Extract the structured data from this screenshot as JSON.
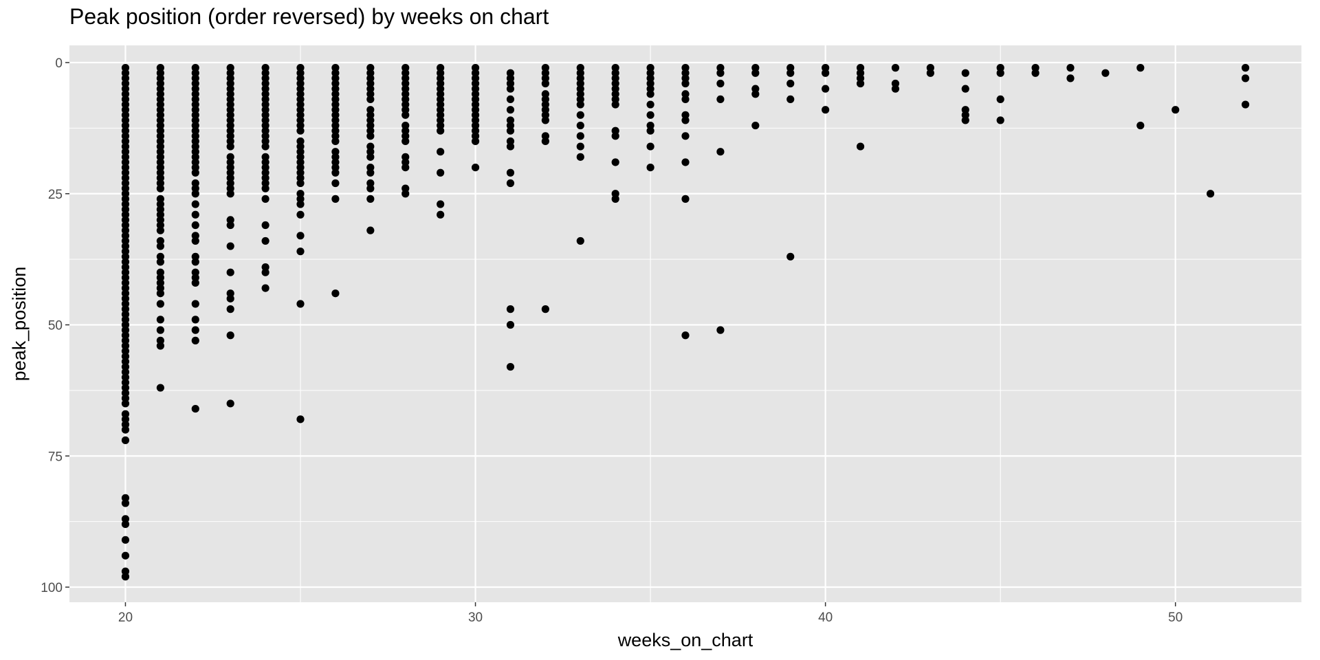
{
  "chart_data": {
    "type": "scatter",
    "title": "Peak position (order reversed) by weeks on chart",
    "xlabel": "weeks_on_chart",
    "ylabel": "peak_position",
    "xlim": [
      18.4,
      53.6
    ],
    "ylim": [
      0,
      101
    ],
    "y_reversed": true,
    "x_ticks": [
      20,
      30,
      40,
      50
    ],
    "y_ticks": [
      0,
      25,
      50,
      75,
      100
    ],
    "grid": true,
    "legend": "none",
    "colors": {
      "panel": "#e5e5e5",
      "grid": "#ffffff",
      "point": "#000000",
      "tick_text": "#4d4d4d"
    },
    "points_by_week": [
      {
        "x": 20,
        "y": [
          1,
          2,
          3,
          4,
          5,
          6,
          7,
          8,
          9,
          10,
          11,
          12,
          13,
          14,
          15,
          16,
          17,
          18,
          19,
          20,
          21,
          22,
          23,
          24,
          25,
          26,
          27,
          28,
          29,
          30,
          31,
          32,
          33,
          34,
          35,
          36,
          37,
          38,
          39,
          40,
          41,
          42,
          43,
          44,
          45,
          46,
          47,
          48,
          49,
          50,
          51,
          52,
          53,
          54,
          55,
          56,
          57,
          58,
          59,
          60,
          61,
          62,
          63,
          64,
          65,
          67,
          68,
          69,
          70,
          72,
          83,
          84,
          87,
          88,
          91,
          94,
          97,
          98
        ]
      },
      {
        "x": 21,
        "y": [
          1,
          2,
          3,
          4,
          5,
          6,
          7,
          8,
          9,
          10,
          11,
          12,
          13,
          14,
          15,
          16,
          17,
          18,
          19,
          20,
          21,
          22,
          23,
          24,
          26,
          27,
          28,
          29,
          30,
          31,
          32,
          34,
          35,
          37,
          38,
          40,
          41,
          42,
          43,
          44,
          46,
          49,
          51,
          53,
          54,
          62
        ]
      },
      {
        "x": 22,
        "y": [
          1,
          2,
          3,
          4,
          5,
          6,
          7,
          8,
          9,
          10,
          11,
          12,
          13,
          14,
          15,
          16,
          17,
          18,
          19,
          20,
          21,
          23,
          24,
          25,
          27,
          29,
          31,
          33,
          34,
          37,
          38,
          40,
          41,
          42,
          46,
          49,
          51,
          53,
          66
        ]
      },
      {
        "x": 23,
        "y": [
          1,
          2,
          3,
          4,
          5,
          6,
          7,
          8,
          9,
          10,
          11,
          12,
          13,
          14,
          15,
          16,
          18,
          19,
          20,
          21,
          22,
          23,
          24,
          25,
          30,
          31,
          35,
          40,
          44,
          45,
          47,
          52,
          65
        ]
      },
      {
        "x": 24,
        "y": [
          1,
          2,
          3,
          4,
          5,
          6,
          7,
          8,
          9,
          10,
          11,
          12,
          13,
          14,
          15,
          16,
          18,
          19,
          20,
          21,
          22,
          23,
          24,
          26,
          31,
          34,
          39,
          40,
          43
        ]
      },
      {
        "x": 25,
        "y": [
          1,
          2,
          3,
          4,
          5,
          6,
          7,
          8,
          9,
          10,
          11,
          12,
          13,
          15,
          16,
          17,
          18,
          19,
          20,
          21,
          22,
          23,
          25,
          26,
          27,
          29,
          33,
          36,
          46,
          68
        ]
      },
      {
        "x": 26,
        "y": [
          1,
          2,
          3,
          4,
          5,
          6,
          7,
          8,
          9,
          10,
          11,
          12,
          13,
          14,
          15,
          17,
          18,
          19,
          20,
          21,
          23,
          26,
          44
        ]
      },
      {
        "x": 27,
        "y": [
          1,
          2,
          3,
          4,
          5,
          6,
          7,
          9,
          10,
          11,
          12,
          13,
          14,
          16,
          17,
          18,
          20,
          21,
          23,
          24,
          26,
          32
        ]
      },
      {
        "x": 28,
        "y": [
          1,
          2,
          3,
          4,
          5,
          6,
          7,
          8,
          9,
          10,
          12,
          13,
          14,
          15,
          18,
          19,
          20,
          24,
          25
        ]
      },
      {
        "x": 29,
        "y": [
          1,
          2,
          3,
          4,
          5,
          6,
          7,
          8,
          9,
          10,
          11,
          12,
          13,
          17,
          21,
          27,
          29
        ]
      },
      {
        "x": 30,
        "y": [
          1,
          2,
          3,
          4,
          5,
          6,
          7,
          8,
          9,
          10,
          11,
          12,
          13,
          14,
          15,
          20
        ]
      },
      {
        "x": 31,
        "y": [
          2,
          3,
          4,
          5,
          7,
          9,
          11,
          12,
          13,
          15,
          16,
          21,
          23,
          47,
          50,
          58
        ]
      },
      {
        "x": 32,
        "y": [
          1,
          2,
          3,
          4,
          6,
          7,
          8,
          9,
          10,
          11,
          14,
          15,
          47
        ]
      },
      {
        "x": 33,
        "y": [
          1,
          2,
          3,
          4,
          5,
          6,
          7,
          8,
          10,
          12,
          14,
          16,
          18,
          34
        ]
      },
      {
        "x": 34,
        "y": [
          1,
          2,
          3,
          4,
          5,
          6,
          7,
          8,
          13,
          14,
          19,
          25,
          26
        ]
      },
      {
        "x": 35,
        "y": [
          1,
          2,
          3,
          4,
          5,
          6,
          8,
          10,
          12,
          13,
          16,
          20
        ]
      },
      {
        "x": 36,
        "y": [
          1,
          2,
          3,
          4,
          6,
          7,
          10,
          11,
          14,
          19,
          26,
          52
        ]
      },
      {
        "x": 37,
        "y": [
          1,
          2,
          4,
          7,
          17,
          51
        ]
      },
      {
        "x": 38,
        "y": [
          1,
          2,
          5,
          6,
          12
        ]
      },
      {
        "x": 39,
        "y": [
          1,
          2,
          4,
          7,
          37
        ]
      },
      {
        "x": 40,
        "y": [
          1,
          2,
          5,
          9
        ]
      },
      {
        "x": 41,
        "y": [
          1,
          2,
          3,
          4,
          16
        ]
      },
      {
        "x": 42,
        "y": [
          1,
          4,
          5
        ]
      },
      {
        "x": 43,
        "y": [
          1,
          2
        ]
      },
      {
        "x": 44,
        "y": [
          2,
          5,
          9,
          10,
          11
        ]
      },
      {
        "x": 45,
        "y": [
          1,
          2,
          7,
          11
        ]
      },
      {
        "x": 46,
        "y": [
          1,
          2
        ]
      },
      {
        "x": 47,
        "y": [
          1,
          3
        ]
      },
      {
        "x": 48,
        "y": [
          2
        ]
      },
      {
        "x": 49,
        "y": [
          1,
          12
        ]
      },
      {
        "x": 50,
        "y": [
          9
        ]
      },
      {
        "x": 51,
        "y": [
          25
        ]
      },
      {
        "x": 52,
        "y": [
          1,
          3,
          8
        ]
      }
    ]
  }
}
